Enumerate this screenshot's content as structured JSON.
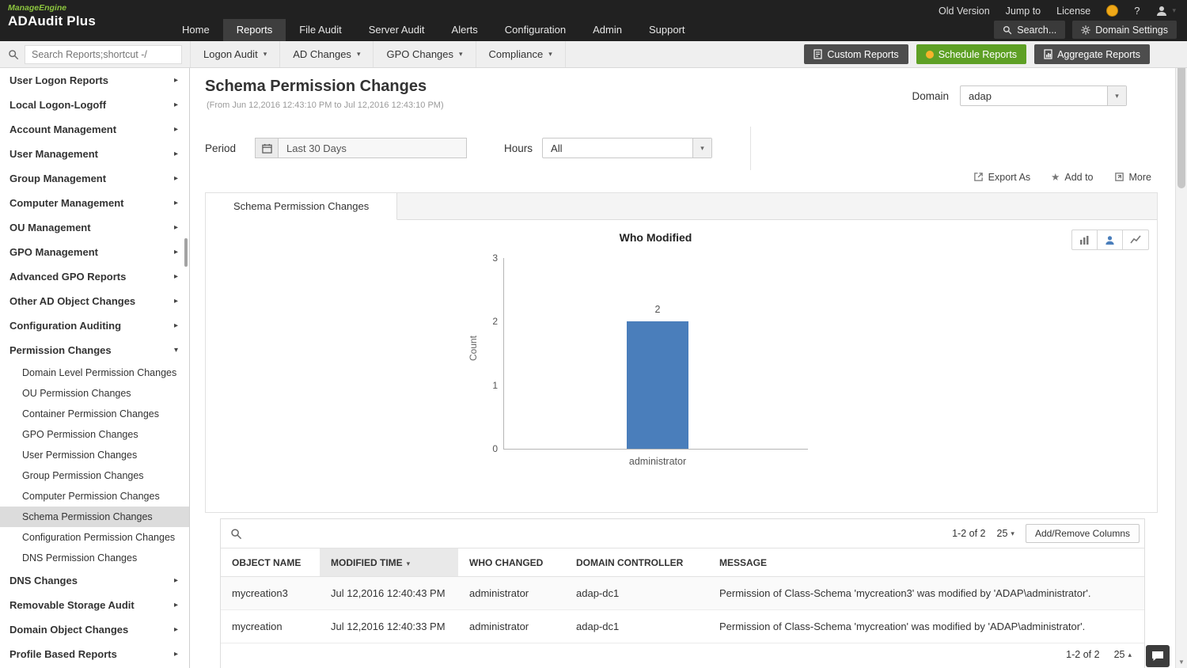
{
  "colors": {
    "topbar_bg": "#212121",
    "accent_green": "#5ea025",
    "bar_blue": "#4a7ebb",
    "selected_bg": "#dcdcdc",
    "logo_green": "#8dc63f"
  },
  "brand": {
    "manageengine": "ManageEngine",
    "product": "ADAudit Plus"
  },
  "topbar": {
    "utility": [
      {
        "label": "Old Version"
      },
      {
        "label": "Jump to"
      },
      {
        "label": "License"
      }
    ],
    "help_label": "?",
    "nav": [
      {
        "label": "Home",
        "active": false
      },
      {
        "label": "Reports",
        "active": true
      },
      {
        "label": "File Audit",
        "active": false
      },
      {
        "label": "Server Audit",
        "active": false
      },
      {
        "label": "Alerts",
        "active": false
      },
      {
        "label": "Configuration",
        "active": false
      },
      {
        "label": "Admin",
        "active": false
      },
      {
        "label": "Support",
        "active": false
      }
    ],
    "search_label": "Search...",
    "domain_settings_label": "Domain Settings"
  },
  "toolbar": {
    "search_placeholder": "Search Reports;shortcut -/",
    "menus": [
      {
        "label": "Logon Audit"
      },
      {
        "label": "AD Changes"
      },
      {
        "label": "GPO Changes"
      },
      {
        "label": "Compliance"
      }
    ],
    "custom_reports": "Custom Reports",
    "schedule_reports": "Schedule Reports",
    "aggregate_reports": "Aggregate Reports"
  },
  "sidebar": {
    "items": [
      {
        "label": "User Logon Reports"
      },
      {
        "label": "Local Logon-Logoff"
      },
      {
        "label": "Account Management"
      },
      {
        "label": "User Management"
      },
      {
        "label": "Group Management"
      },
      {
        "label": "Computer Management"
      },
      {
        "label": "OU Management"
      },
      {
        "label": "GPO Management"
      },
      {
        "label": "Advanced GPO Reports"
      },
      {
        "label": "Other AD Object Changes"
      },
      {
        "label": "Configuration Auditing"
      },
      {
        "label": "Permission Changes"
      },
      {
        "label": "DNS Changes"
      },
      {
        "label": "Removable Storage Audit"
      },
      {
        "label": "Domain Object Changes"
      },
      {
        "label": "Profile Based Reports"
      }
    ],
    "permission_children": [
      {
        "label": "Domain Level Permission Changes"
      },
      {
        "label": "OU Permission Changes"
      },
      {
        "label": "Container Permission Changes"
      },
      {
        "label": "GPO Permission Changes"
      },
      {
        "label": "User Permission Changes"
      },
      {
        "label": "Group Permission Changes"
      },
      {
        "label": "Computer Permission Changes"
      },
      {
        "label": "Schema Permission Changes"
      },
      {
        "label": "Configuration Permission Changes"
      },
      {
        "label": "DNS Permission Changes"
      }
    ],
    "selected": "Schema Permission Changes"
  },
  "report": {
    "title": "Schema Permission Changes",
    "subtitle": "(From Jun 12,2016 12:43:10 PM to Jul 12,2016 12:43:10 PM)",
    "domain_label": "Domain",
    "domain_value": "adap",
    "period_label": "Period",
    "period_value": "Last 30 Days",
    "hours_label": "Hours",
    "hours_value": "All",
    "export_as": "Export As",
    "add_to": "Add to",
    "more": "More",
    "tab_label": "Schema Permission Changes"
  },
  "chart_data": {
    "type": "bar",
    "title": "Who Modified",
    "categories": [
      "administrator"
    ],
    "values": [
      2
    ],
    "xlabel": "",
    "ylabel": "Count",
    "ylim": [
      0,
      3
    ],
    "yticks": [
      3,
      2,
      1,
      0
    ],
    "bar_color": "#4a7ebb",
    "grid": false,
    "legend": false
  },
  "table": {
    "range_top": "1-2 of 2",
    "page_size_top": "25",
    "add_remove_columns": "Add/Remove Columns",
    "sorted_column": "MODIFIED TIME",
    "columns": [
      {
        "label": "OBJECT NAME"
      },
      {
        "label": "MODIFIED TIME"
      },
      {
        "label": "WHO CHANGED"
      },
      {
        "label": "DOMAIN CONTROLLER"
      },
      {
        "label": "MESSAGE"
      }
    ],
    "rows": [
      {
        "object_name": "mycreation3",
        "modified_time": "Jul 12,2016 12:40:43 PM",
        "who_changed": "administrator",
        "domain_controller": "adap-dc1",
        "message": "Permission of Class-Schema 'mycreation3' was modified by 'ADAP\\administrator'."
      },
      {
        "object_name": "mycreation",
        "modified_time": "Jul 12,2016 12:40:33 PM",
        "who_changed": "administrator",
        "domain_controller": "adap-dc1",
        "message": "Permission of Class-Schema 'mycreation' was modified by 'ADAP\\administrator'."
      }
    ],
    "range_bottom": "1-2 of 2",
    "page_size_bottom": "25"
  }
}
